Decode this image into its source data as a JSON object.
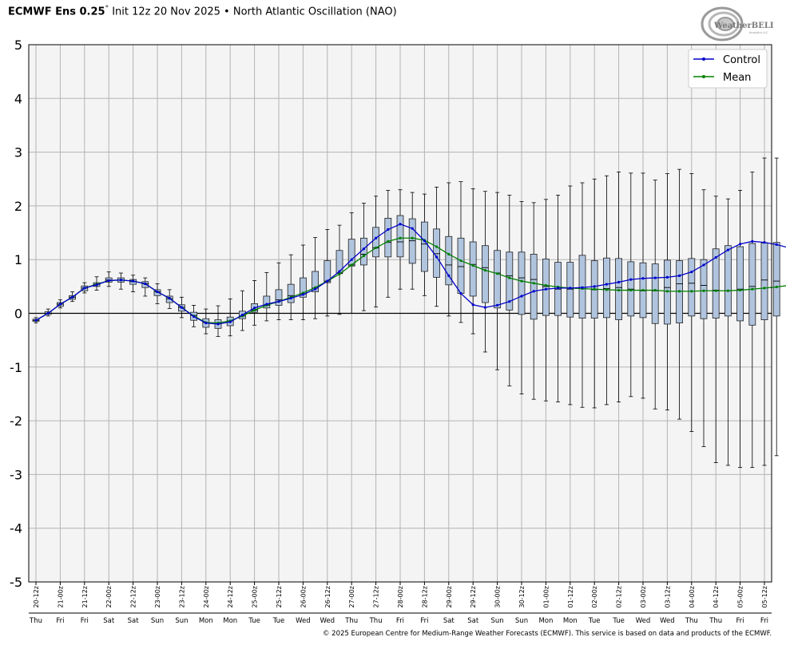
{
  "header": {
    "model": "ECMWF Ens 0.25",
    "degree": "°",
    "init": "Init 12z 20 Nov 2025",
    "bullet": "•",
    "index_name": "North Atlantic Oscillation (NAO)"
  },
  "logo": {
    "text": "WeatherBELL",
    "subtext": "Analytics LLC"
  },
  "copyright": "© 2025 European Centre for Medium-Range Weather Forecasts (ECMWF). This service is based on data and products of the ECMWF.",
  "colors": {
    "control": "#0000cc",
    "mean": "#008000",
    "box_fill": "#b0c4de",
    "plot_bg": "#f4f4f4",
    "grid": "#b4b4b4"
  },
  "chart_data": {
    "type": "box",
    "ylim": [
      -5,
      5
    ],
    "yticks": [
      "5",
      "4",
      "3",
      "2",
      "1",
      "0",
      "-1",
      "-2",
      "-3",
      "-4",
      "-5"
    ],
    "x_labels": [
      "20-12z",
      "21-00z",
      "21-12z",
      "22-00z",
      "22-12z",
      "23-00z",
      "23-12z",
      "24-00z",
      "24-12z",
      "25-00z",
      "25-12z",
      "26-00z",
      "26-12z",
      "27-00z",
      "27-12z",
      "28-00z",
      "28-12z",
      "29-00z",
      "29-12z",
      "30-00z",
      "30-12z",
      "01-00z",
      "01-12z",
      "02-00z",
      "02-12z",
      "03-00z",
      "03-12z",
      "04-00z",
      "04-12z",
      "05-00z",
      "05-12z"
    ],
    "day_labels": [
      "Thu",
      "Fri",
      "Fri",
      "Sat",
      "Sat",
      "Sun",
      "Sun",
      "Mon",
      "Mon",
      "Tue",
      "Tue",
      "Wed",
      "Wed",
      "Thu",
      "Thu",
      "Fri",
      "Fri",
      "Sat",
      "Sat",
      "Sun",
      "Sun",
      "Mon",
      "Mon",
      "Tue",
      "Tue",
      "Wed",
      "Wed",
      "Thu",
      "Thu",
      "Fri",
      "Fri"
    ],
    "legend": [
      "Control",
      "Mean"
    ],
    "legend_position": "top-right",
    "grid": true,
    "control": [
      -0.13,
      0.0,
      0.17,
      0.3,
      0.47,
      0.53,
      0.61,
      0.62,
      0.6,
      0.55,
      0.4,
      0.28,
      0.11,
      -0.06,
      -0.18,
      -0.2,
      -0.16,
      -0.03,
      0.1,
      0.17,
      0.22,
      0.28,
      0.35,
      0.45,
      0.6,
      0.78,
      1.0,
      1.2,
      1.4,
      1.56,
      1.66,
      1.58,
      1.35,
      1.05,
      0.7,
      0.37,
      0.16,
      0.11,
      0.15,
      0.22,
      0.32,
      0.41,
      0.45,
      0.47,
      0.47,
      0.48,
      0.5,
      0.54,
      0.58,
      0.63,
      0.65,
      0.66,
      0.67,
      0.7,
      0.77,
      0.9,
      1.04,
      1.18,
      1.29,
      1.34,
      1.32,
      1.28,
      1.22,
      1.24
    ],
    "mean": [
      -0.13,
      0.0,
      0.17,
      0.3,
      0.47,
      0.54,
      0.61,
      0.62,
      0.6,
      0.55,
      0.4,
      0.28,
      0.11,
      -0.05,
      -0.17,
      -0.18,
      -0.14,
      -0.05,
      0.06,
      0.15,
      0.22,
      0.3,
      0.38,
      0.48,
      0.6,
      0.73,
      0.9,
      1.07,
      1.22,
      1.34,
      1.4,
      1.4,
      1.36,
      1.24,
      1.1,
      0.98,
      0.89,
      0.8,
      0.74,
      0.66,
      0.6,
      0.56,
      0.52,
      0.49,
      0.47,
      0.46,
      0.45,
      0.44,
      0.43,
      0.43,
      0.43,
      0.43,
      0.41,
      0.41,
      0.41,
      0.42,
      0.42,
      0.42,
      0.43,
      0.45,
      0.47,
      0.49,
      0.52,
      0.55
    ],
    "boxes": {
      "q1": [
        -0.15,
        -0.02,
        0.13,
        0.26,
        0.42,
        0.5,
        0.58,
        0.58,
        0.54,
        0.48,
        0.33,
        0.2,
        0.04,
        -0.13,
        -0.26,
        -0.28,
        -0.23,
        -0.1,
        0.02,
        0.1,
        0.15,
        0.2,
        0.3,
        0.4,
        0.57,
        0.75,
        0.88,
        0.9,
        1.05,
        1.05,
        1.05,
        0.93,
        0.78,
        0.67,
        0.53,
        0.37,
        0.32,
        0.2,
        0.1,
        0.06,
        -0.02,
        -0.11,
        -0.04,
        -0.04,
        -0.07,
        -0.09,
        -0.09,
        -0.08,
        -0.12,
        -0.05,
        -0.08,
        -0.19,
        -0.2,
        -0.18,
        -0.05,
        -0.1,
        -0.09,
        -0.05,
        -0.14,
        -0.22,
        -0.12,
        -0.05
      ],
      "median": [
        -0.13,
        0.0,
        0.17,
        0.3,
        0.47,
        0.54,
        0.62,
        0.62,
        0.59,
        0.55,
        0.4,
        0.27,
        0.11,
        -0.04,
        -0.17,
        -0.18,
        -0.14,
        -0.05,
        0.06,
        0.15,
        0.25,
        0.33,
        0.36,
        0.47,
        0.6,
        0.74,
        0.9,
        1.1,
        1.22,
        1.32,
        1.33,
        1.35,
        1.29,
        1.11,
        0.9,
        0.87,
        0.91,
        0.85,
        0.75,
        0.7,
        0.66,
        0.63,
        0.5,
        0.45,
        0.45,
        0.46,
        0.44,
        0.46,
        0.48,
        0.45,
        0.42,
        0.42,
        0.48,
        0.55,
        0.56,
        0.52,
        0.43,
        0.42,
        0.45,
        0.5,
        0.62,
        0.6
      ],
      "q3": [
        -0.11,
        0.03,
        0.2,
        0.33,
        0.51,
        0.57,
        0.66,
        0.66,
        0.63,
        0.59,
        0.44,
        0.32,
        0.16,
        0.02,
        -0.1,
        -0.12,
        -0.07,
        0.04,
        0.18,
        0.32,
        0.44,
        0.54,
        0.66,
        0.78,
        0.98,
        1.17,
        1.38,
        1.4,
        1.6,
        1.77,
        1.82,
        1.76,
        1.7,
        1.57,
        1.43,
        1.4,
        1.33,
        1.26,
        1.17,
        1.14,
        1.14,
        1.1,
        1.01,
        0.95,
        0.95,
        1.08,
        0.98,
        1.03,
        1.02,
        0.96,
        0.94,
        0.92,
        0.99,
        0.98,
        1.02,
        1.0,
        1.2,
        1.26,
        1.24,
        1.3,
        1.31,
        1.32
      ],
      "min": [
        -0.18,
        -0.05,
        0.1,
        0.22,
        0.38,
        0.43,
        0.5,
        0.45,
        0.4,
        0.32,
        0.18,
        0.09,
        -0.08,
        -0.25,
        -0.38,
        -0.43,
        -0.42,
        -0.32,
        -0.22,
        -0.14,
        -0.12,
        -0.12,
        -0.12,
        -0.1,
        -0.05,
        -0.02,
        0.0,
        0.05,
        0.12,
        0.3,
        0.45,
        0.45,
        0.33,
        0.13,
        -0.05,
        -0.17,
        -0.38,
        -0.72,
        -1.05,
        -1.35,
        -1.5,
        -1.6,
        -1.63,
        -1.65,
        -1.7,
        -1.75,
        -1.76,
        -1.7,
        -1.65,
        -1.55,
        -1.58,
        -1.78,
        -1.8,
        -1.97,
        -2.2,
        -2.48,
        -2.78,
        -2.83,
        -2.87,
        -2.87,
        -2.83,
        -2.65
      ],
      "max": [
        -0.08,
        0.08,
        0.25,
        0.4,
        0.57,
        0.68,
        0.77,
        0.75,
        0.71,
        0.66,
        0.55,
        0.44,
        0.3,
        0.15,
        0.08,
        0.14,
        0.27,
        0.42,
        0.61,
        0.76,
        0.94,
        1.09,
        1.27,
        1.41,
        1.56,
        1.64,
        1.87,
        2.05,
        2.18,
        2.29,
        2.3,
        2.25,
        2.22,
        2.35,
        2.43,
        2.45,
        2.32,
        2.27,
        2.25,
        2.2,
        2.08,
        2.06,
        2.12,
        2.2,
        2.37,
        2.43,
        2.5,
        2.56,
        2.63,
        2.61,
        2.61,
        2.48,
        2.6,
        2.68,
        2.6,
        2.3,
        2.18,
        2.13,
        2.29,
        2.63,
        2.89,
        2.89
      ]
    }
  }
}
